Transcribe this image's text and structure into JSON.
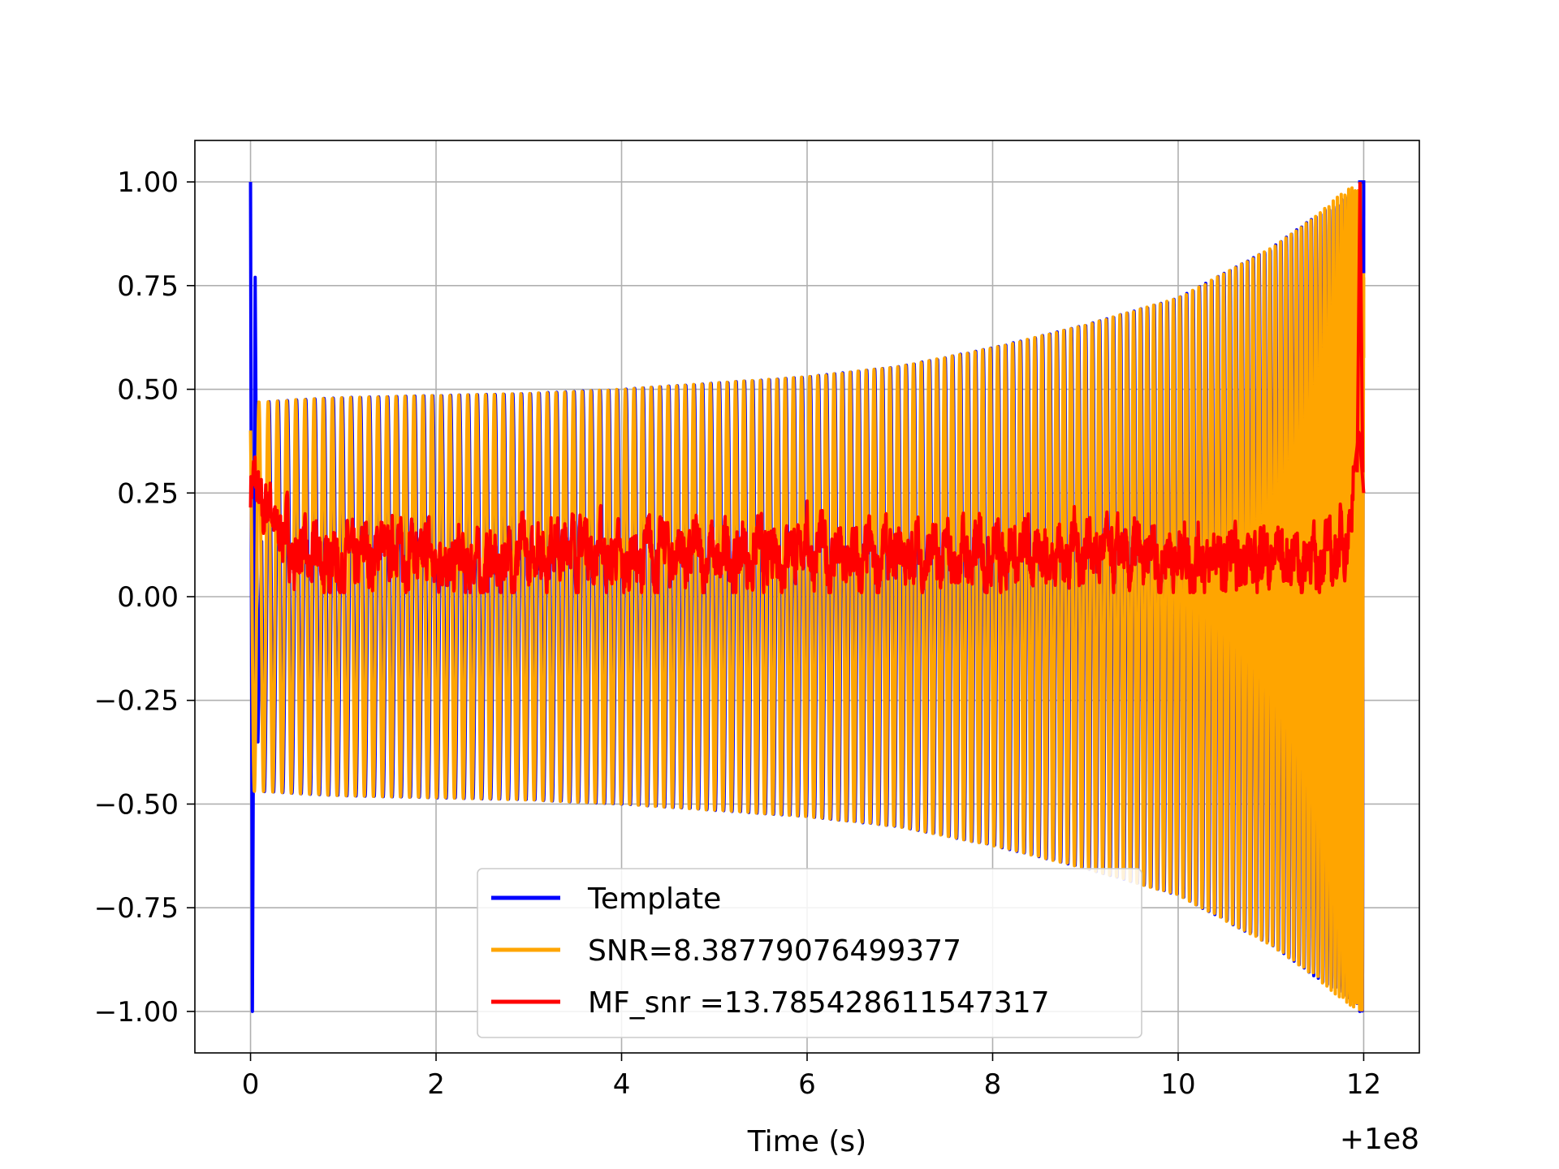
{
  "chart_data": {
    "type": "line",
    "title": "",
    "xlabel": "Time (s)",
    "ylabel": "",
    "x_offset_label": "+1e8",
    "xlim": [
      -0.6,
      12.6
    ],
    "ylim": [
      -1.1,
      1.1
    ],
    "xticks": [
      0,
      2,
      4,
      6,
      8,
      10,
      12
    ],
    "xtick_labels": [
      "0",
      "2",
      "4",
      "6",
      "8",
      "10",
      "12"
    ],
    "yticks": [
      -1.0,
      -0.75,
      -0.5,
      -0.25,
      0.0,
      0.25,
      0.5,
      0.75,
      1.0
    ],
    "ytick_labels": [
      "−1.00",
      "−0.75",
      "−0.50",
      "−0.25",
      "0.00",
      "0.25",
      "0.50",
      "0.75",
      "1.00"
    ],
    "grid": true,
    "legend_position": "lower-center",
    "series": [
      {
        "name": "Template",
        "color": "#0000ff",
        "x": [
          0.0,
          0.03,
          0.08,
          0.12,
          0.2,
          0.5,
          1.0,
          2.0,
          3.0,
          4.0,
          5.0,
          6.0,
          7.0,
          8.0,
          9.0,
          10.0,
          11.0,
          11.5,
          11.9,
          11.95,
          12.0
        ],
        "envelope": [
          1.0,
          1.0,
          0.77,
          0.47,
          0.47,
          0.475,
          0.48,
          0.485,
          0.49,
          0.5,
          0.515,
          0.53,
          0.555,
          0.6,
          0.655,
          0.72,
          0.84,
          0.92,
          0.98,
          1.0,
          1.0
        ]
      },
      {
        "name": "SNR=8.38779076499377",
        "color": "#ffa500",
        "x": [
          0.0,
          0.2,
          0.5,
          1.0,
          2.0,
          3.0,
          4.0,
          5.0,
          6.0,
          7.0,
          8.0,
          9.0,
          10.0,
          11.0,
          11.5,
          11.8,
          12.0
        ],
        "envelope": [
          0.47,
          0.47,
          0.475,
          0.48,
          0.485,
          0.49,
          0.5,
          0.515,
          0.53,
          0.555,
          0.6,
          0.655,
          0.72,
          0.84,
          0.92,
          0.98,
          1.0
        ]
      },
      {
        "name": "MF_snr =13.785428611547317",
        "color": "#ff0000",
        "x": [
          0.0,
          0.5,
          1.0,
          1.5,
          2.0,
          2.5,
          3.0,
          3.5,
          4.0,
          4.5,
          5.0,
          5.5,
          6.0,
          6.5,
          7.0,
          7.5,
          8.0,
          8.5,
          9.0,
          9.5,
          10.0,
          10.5,
          11.0,
          11.5,
          11.8,
          11.95,
          12.0
        ],
        "y": [
          0.27,
          0.1,
          0.08,
          0.12,
          0.09,
          0.07,
          0.1,
          0.13,
          0.08,
          0.11,
          0.09,
          0.1,
          0.12,
          0.08,
          0.1,
          0.09,
          0.11,
          0.1,
          0.12,
          0.09,
          0.1,
          0.08,
          0.1,
          0.09,
          0.12,
          0.4,
          0.25
        ]
      }
    ]
  }
}
